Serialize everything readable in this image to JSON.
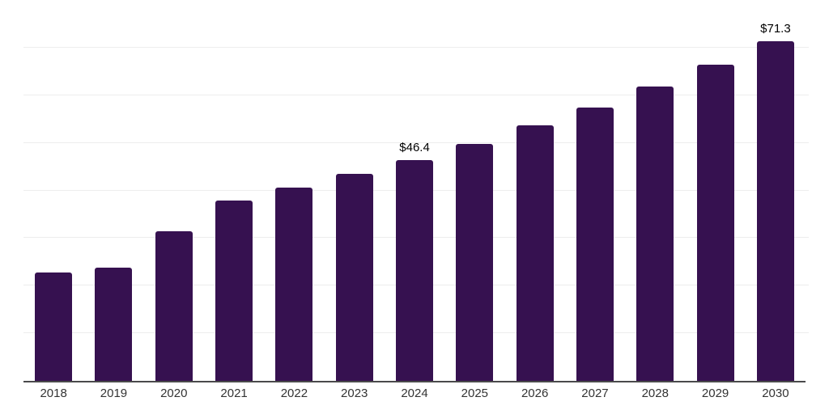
{
  "chart_data": {
    "type": "bar",
    "title": "",
    "xlabel": "",
    "ylabel": "",
    "categories": [
      "2018",
      "2019",
      "2020",
      "2021",
      "2022",
      "2023",
      "2024",
      "2025",
      "2026",
      "2027",
      "2028",
      "2029",
      "2030"
    ],
    "values": [
      22.8,
      23.8,
      31.4,
      37.9,
      40.6,
      43.5,
      46.4,
      49.8,
      53.6,
      57.5,
      61.8,
      66.4,
      71.3
    ],
    "value_unit_prefix": "$",
    "data_labels": [
      {
        "category": "2024",
        "text": "$46.4"
      },
      {
        "category": "2030",
        "text": "$71.3"
      }
    ],
    "ylim": [
      0,
      80
    ],
    "grid": true,
    "grid_step": 10,
    "y_tick_labels_visible": false,
    "legend_position": "none",
    "colors": {
      "bar": "#361150",
      "gridline": "#ededed",
      "axis_line": "#4a4a4b",
      "tick_text": "#333333",
      "data_label_text": "#000000",
      "background": "#ffffff"
    }
  }
}
